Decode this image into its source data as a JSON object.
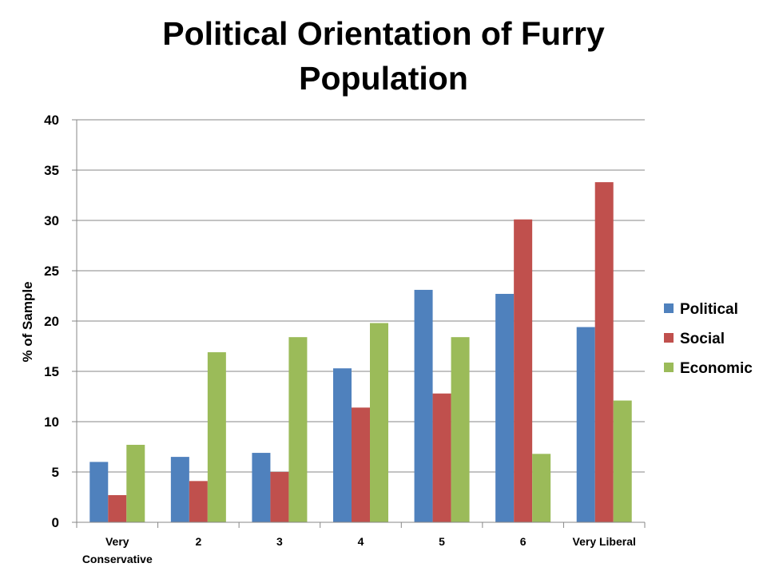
{
  "chart_data": {
    "type": "bar",
    "title_lines": [
      "Political Orientation of Furry",
      "Population"
    ],
    "ylabel": "% of Sample",
    "xlabel": "",
    "ylim": [
      0,
      40
    ],
    "yticks": [
      0,
      5,
      10,
      15,
      20,
      25,
      30,
      35,
      40
    ],
    "grid": true,
    "legend_position": "right",
    "categories": [
      [
        "Very",
        "Conservative"
      ],
      [
        "2"
      ],
      [
        "3"
      ],
      [
        "4"
      ],
      [
        "5"
      ],
      [
        "6"
      ],
      [
        "Very Liberal"
      ]
    ],
    "series": [
      {
        "name": "Political",
        "color": "#4F81BD",
        "values": [
          6.0,
          6.5,
          6.9,
          15.3,
          23.1,
          22.7,
          19.4
        ]
      },
      {
        "name": "Social",
        "color": "#C0504D",
        "values": [
          2.7,
          4.1,
          5.0,
          11.4,
          12.8,
          30.1,
          33.8
        ]
      },
      {
        "name": "Economic",
        "color": "#9BBB59",
        "values": [
          7.7,
          16.9,
          18.4,
          19.8,
          18.4,
          6.8,
          12.1
        ]
      }
    ]
  }
}
